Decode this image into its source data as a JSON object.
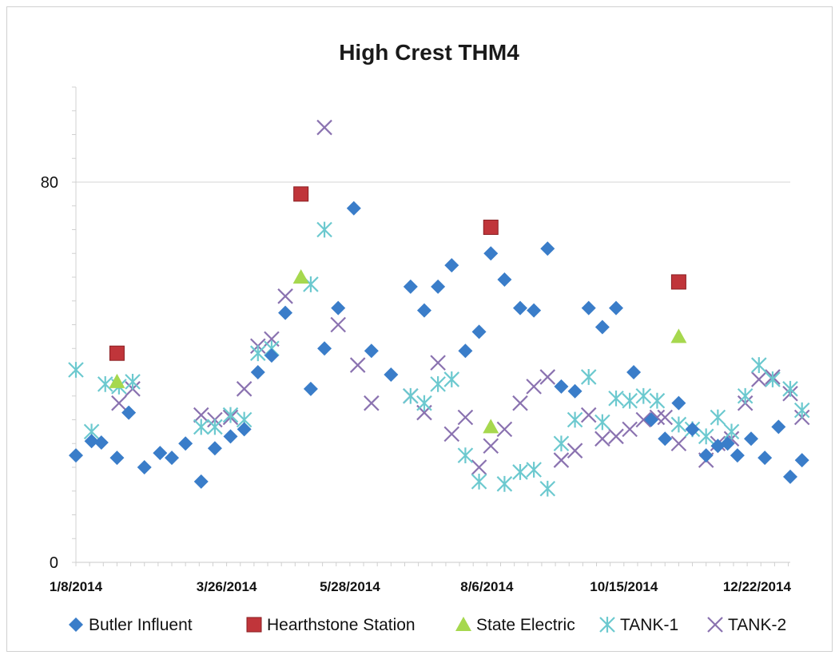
{
  "chart_data": {
    "type": "scatter",
    "title": "High Crest THM4",
    "xlabel": "",
    "ylabel": "",
    "x_type": "date",
    "xlim": [
      "2014-01-08",
      "2015-01-08"
    ],
    "ylim": [
      0,
      100
    ],
    "x_tick_labels": [
      "1/8/2014",
      "3/26/2014",
      "5/28/2014",
      "8/6/2014",
      "10/15/2014",
      "12/22/2014"
    ],
    "x_tick_values": [
      "2014-01-08",
      "2014-03-26",
      "2014-05-28",
      "2014-08-06",
      "2014-10-15",
      "2014-12-22"
    ],
    "y_tick_labels": [
      "0",
      "80"
    ],
    "y_tick_values": [
      0,
      80
    ],
    "grid": true,
    "legend_position": "bottom",
    "series": [
      {
        "name": "Butler Influent",
        "color": "#3a7dc9",
        "marker": "diamond",
        "points": [
          [
            "2014-01-08",
            22.5
          ],
          [
            "2014-01-16",
            25.5
          ],
          [
            "2014-01-21",
            25.2
          ],
          [
            "2014-01-29",
            22.0
          ],
          [
            "2014-02-04",
            31.5
          ],
          [
            "2014-02-12",
            20.0
          ],
          [
            "2014-02-20",
            23.0
          ],
          [
            "2014-02-26",
            22.0
          ],
          [
            "2014-03-05",
            25.0
          ],
          [
            "2014-03-13",
            17.0
          ],
          [
            "2014-03-20",
            24.0
          ],
          [
            "2014-03-28",
            26.5
          ],
          [
            "2014-04-04",
            28.0
          ],
          [
            "2014-04-11",
            40.0
          ],
          [
            "2014-04-18",
            43.5
          ],
          [
            "2014-04-25",
            52.5
          ],
          [
            "2014-05-08",
            36.5
          ],
          [
            "2014-05-15",
            45.0
          ],
          [
            "2014-05-22",
            53.5
          ],
          [
            "2014-05-30",
            74.5
          ],
          [
            "2014-06-08",
            44.5
          ],
          [
            "2014-06-18",
            39.5
          ],
          [
            "2014-06-28",
            58.0
          ],
          [
            "2014-07-05",
            53.0
          ],
          [
            "2014-07-12",
            58.0
          ],
          [
            "2014-07-19",
            62.5
          ],
          [
            "2014-07-26",
            44.5
          ],
          [
            "2014-08-02",
            48.5
          ],
          [
            "2014-08-08",
            65.0
          ],
          [
            "2014-08-15",
            59.5
          ],
          [
            "2014-08-23",
            53.5
          ],
          [
            "2014-08-30",
            53.0
          ],
          [
            "2014-09-06",
            66.0
          ],
          [
            "2014-09-13",
            37.0
          ],
          [
            "2014-09-20",
            36.0
          ],
          [
            "2014-09-27",
            53.5
          ],
          [
            "2014-10-04",
            49.5
          ],
          [
            "2014-10-11",
            53.5
          ],
          [
            "2014-10-20",
            40.0
          ],
          [
            "2014-10-29",
            30.0
          ],
          [
            "2014-11-05",
            26.0
          ],
          [
            "2014-11-12",
            33.5
          ],
          [
            "2014-11-19",
            28.0
          ],
          [
            "2014-11-26",
            22.5
          ],
          [
            "2014-12-02",
            24.5
          ],
          [
            "2014-12-07",
            25.0
          ],
          [
            "2014-12-12",
            22.5
          ],
          [
            "2014-12-19",
            26.0
          ],
          [
            "2014-12-26",
            22.0
          ],
          [
            "2015-01-02",
            28.5
          ],
          [
            "2015-01-08",
            18.0
          ],
          [
            "2015-01-14",
            21.5
          ]
        ]
      },
      {
        "name": "Hearthstone Station",
        "color": "#c0353a",
        "marker": "square",
        "points": [
          [
            "2014-01-29",
            44.0
          ],
          [
            "2014-05-03",
            77.5
          ],
          [
            "2014-08-08",
            70.5
          ],
          [
            "2014-11-12",
            59.0
          ]
        ]
      },
      {
        "name": "State Electric",
        "color": "#a6d84e",
        "marker": "triangle",
        "points": [
          [
            "2014-01-29",
            38.0
          ],
          [
            "2014-05-03",
            60.0
          ],
          [
            "2014-08-08",
            28.5
          ],
          [
            "2014-11-12",
            47.5
          ]
        ]
      },
      {
        "name": "TANK-1",
        "color": "#6cc9cf",
        "marker": "star",
        "points": [
          [
            "2014-01-08",
            40.5
          ],
          [
            "2014-01-16",
            27.5
          ],
          [
            "2014-01-23",
            37.5
          ],
          [
            "2014-01-30",
            37.0
          ],
          [
            "2014-02-06",
            38.0
          ],
          [
            "2014-03-13",
            28.5
          ],
          [
            "2014-03-20",
            28.5
          ],
          [
            "2014-03-28",
            31.0
          ],
          [
            "2014-04-04",
            30.0
          ],
          [
            "2014-04-11",
            44.0
          ],
          [
            "2014-04-18",
            45.0
          ],
          [
            "2014-05-08",
            58.5
          ],
          [
            "2014-05-15",
            70.0
          ],
          [
            "2014-06-28",
            35.0
          ],
          [
            "2014-07-05",
            33.5
          ],
          [
            "2014-07-12",
            37.5
          ],
          [
            "2014-07-19",
            38.5
          ],
          [
            "2014-07-26",
            22.5
          ],
          [
            "2014-08-02",
            17.0
          ],
          [
            "2014-08-15",
            16.5
          ],
          [
            "2014-08-23",
            19.0
          ],
          [
            "2014-08-30",
            19.5
          ],
          [
            "2014-09-06",
            15.5
          ],
          [
            "2014-09-13",
            25.0
          ],
          [
            "2014-09-20",
            30.0
          ],
          [
            "2014-09-27",
            39.0
          ],
          [
            "2014-10-04",
            29.5
          ],
          [
            "2014-10-11",
            34.5
          ],
          [
            "2014-10-18",
            34.0
          ],
          [
            "2014-10-25",
            35.0
          ],
          [
            "2014-11-01",
            34.0
          ],
          [
            "2014-11-12",
            29.0
          ],
          [
            "2014-11-19",
            28.0
          ],
          [
            "2014-11-26",
            26.5
          ],
          [
            "2014-12-02",
            30.5
          ],
          [
            "2014-12-09",
            27.5
          ],
          [
            "2014-12-16",
            35.0
          ],
          [
            "2014-12-23",
            41.5
          ],
          [
            "2014-12-30",
            38.5
          ],
          [
            "2015-01-08",
            36.5
          ],
          [
            "2015-01-14",
            32.0
          ]
        ]
      },
      {
        "name": "TANK-2",
        "color": "#8a72b0",
        "marker": "x",
        "points": [
          [
            "2014-01-30",
            33.5
          ],
          [
            "2014-02-06",
            36.5
          ],
          [
            "2014-03-13",
            31.0
          ],
          [
            "2014-03-20",
            30.0
          ],
          [
            "2014-03-28",
            30.5
          ],
          [
            "2014-04-04",
            36.5
          ],
          [
            "2014-04-11",
            45.5
          ],
          [
            "2014-04-18",
            47.0
          ],
          [
            "2014-04-25",
            56.0
          ],
          [
            "2014-05-15",
            91.5
          ],
          [
            "2014-05-22",
            50.0
          ],
          [
            "2014-06-01",
            41.5
          ],
          [
            "2014-06-08",
            33.5
          ],
          [
            "2014-06-28",
            35.0
          ],
          [
            "2014-07-05",
            31.5
          ],
          [
            "2014-07-12",
            42.0
          ],
          [
            "2014-07-19",
            27.0
          ],
          [
            "2014-07-26",
            30.5
          ],
          [
            "2014-08-02",
            20.0
          ],
          [
            "2014-08-08",
            24.5
          ],
          [
            "2014-08-15",
            28.0
          ],
          [
            "2014-08-23",
            33.5
          ],
          [
            "2014-08-30",
            37.0
          ],
          [
            "2014-09-06",
            39.0
          ],
          [
            "2014-09-13",
            21.5
          ],
          [
            "2014-09-20",
            23.5
          ],
          [
            "2014-09-27",
            31.0
          ],
          [
            "2014-10-04",
            26.0
          ],
          [
            "2014-10-11",
            26.5
          ],
          [
            "2014-10-18",
            28.0
          ],
          [
            "2014-10-25",
            30.0
          ],
          [
            "2014-11-01",
            30.5
          ],
          [
            "2014-11-05",
            30.5
          ],
          [
            "2014-11-12",
            25.0
          ],
          [
            "2014-11-26",
            21.5
          ],
          [
            "2014-12-02",
            25.0
          ],
          [
            "2014-12-09",
            26.0
          ],
          [
            "2014-12-16",
            33.5
          ],
          [
            "2014-12-23",
            38.5
          ],
          [
            "2014-12-30",
            39.0
          ],
          [
            "2015-01-08",
            35.5
          ],
          [
            "2015-01-14",
            30.5
          ]
        ]
      }
    ]
  }
}
